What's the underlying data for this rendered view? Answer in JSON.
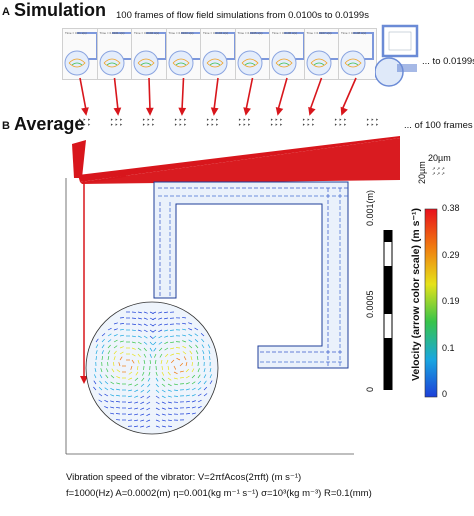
{
  "panel_a": {
    "letter": "A",
    "title": "Simulation",
    "caption": "100 frames of flow field simulations from 0.0100s to 0.0199s",
    "end_note": "... to 0.0199s",
    "frame_labels": [
      "Time = 0.01 s(s)",
      "Time = 0.0101 s(s)",
      "Time = 0.0102 s(s)",
      "Time = 0.0103 s(s)",
      "Time = 0.0104 s(s)",
      "Time = 0.0105 s(s)",
      "Time = 0.0106 s(s)",
      "Time = 0.0107 s(s)",
      "Time = 0.0108 s(s)"
    ]
  },
  "panel_b": {
    "letter": "B",
    "title": "Average",
    "end_note": "... of 100 frames",
    "scale_label": "20µm",
    "scale_label_vertical": "20µm"
  },
  "scalebar": {
    "tick_top": "0.001(m)",
    "tick_mid": "0.0005",
    "tick_bottom": "0"
  },
  "colorbar": {
    "label": "Velocity (arrow color scale) (m s⁻¹)",
    "ticks": [
      "0.38",
      "0.29",
      "0.19",
      "0.1",
      "0"
    ],
    "colors": [
      "#e8101c",
      "#f07a10",
      "#e6e21a",
      "#37c44a",
      "#1aa7e0",
      "#1c3fd8"
    ]
  },
  "formula": {
    "line1": "Vibration speed of the vibrator: V=2πfAcos(2πft) (m s⁻¹)",
    "line2": "f=1000(Hz)  A=0.0002(m)  η=0.001(kg m⁻¹ s⁻¹)  σ=10³(kg m⁻³)  R=0.1(mm)"
  },
  "colors": {
    "arrow_red": "#d8161c",
    "chip_outline": "#333333",
    "field_blue": "#4a76d8"
  }
}
